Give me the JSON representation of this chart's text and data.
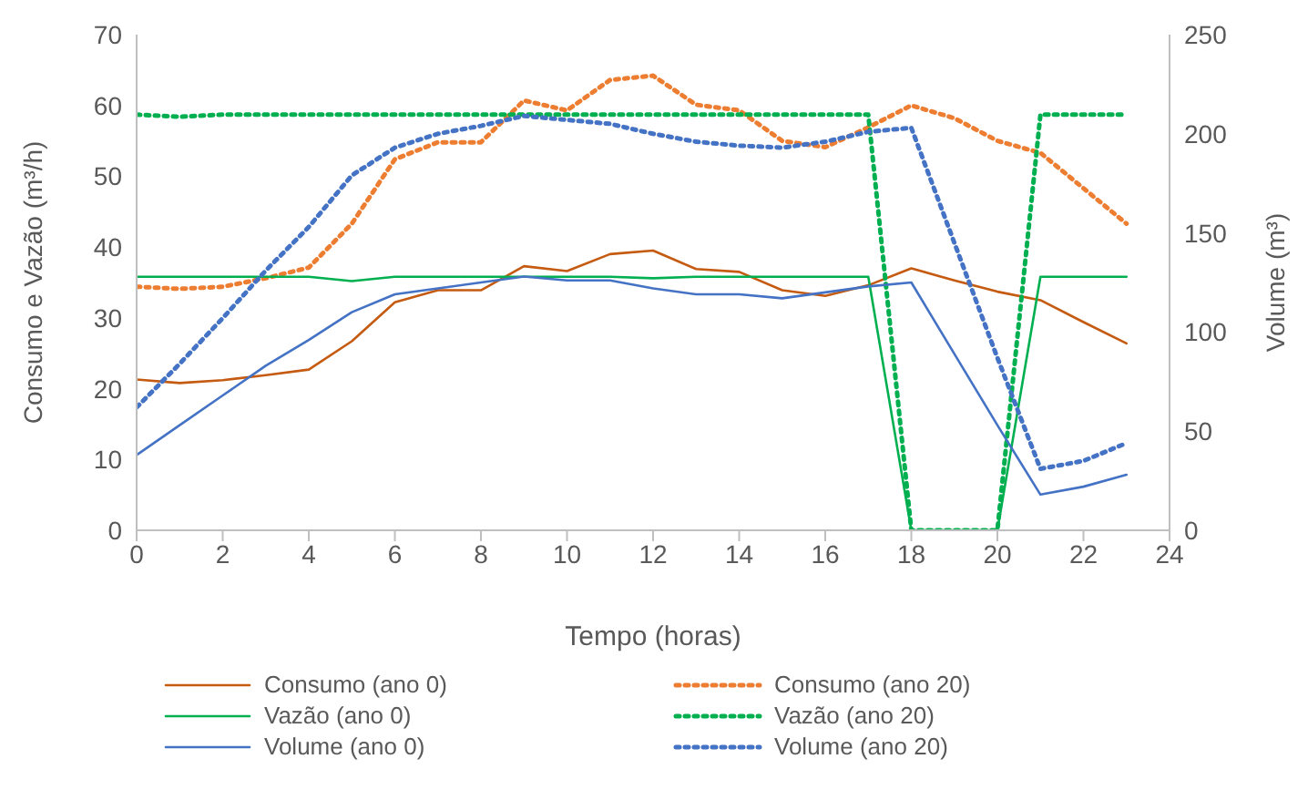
{
  "chart_data": {
    "type": "line",
    "xlabel": "Tempo (horas)",
    "ylabel": "Consumo e Vazão (m³/h)",
    "y2label": "Volume (m³)",
    "x": [
      0,
      1,
      2,
      3,
      4,
      5,
      6,
      7,
      8,
      9,
      10,
      11,
      12,
      13,
      14,
      15,
      16,
      17,
      18,
      19,
      20,
      21,
      22,
      23
    ],
    "xlim": [
      0,
      24
    ],
    "xticks": [
      0,
      2,
      4,
      6,
      8,
      10,
      12,
      14,
      16,
      18,
      20,
      22,
      24
    ],
    "ylim": [
      0,
      70
    ],
    "yticks": [
      0,
      10,
      20,
      30,
      40,
      50,
      60,
      70
    ],
    "y2lim": [
      0,
      250
    ],
    "y2ticks": [
      0,
      50,
      100,
      150,
      200,
      250
    ],
    "grid": false,
    "legend": "bottom",
    "marker": "none",
    "series": [
      {
        "name": "Consumo (ano 0)",
        "color": "#c55a11",
        "line_style": "solid",
        "values": [
          21.3,
          20.8,
          21.2,
          21.9,
          22.7,
          26.7,
          32.2,
          33.9,
          33.9,
          37.3,
          36.6,
          39.0,
          39.5,
          36.9,
          36.5,
          33.9,
          33.1,
          34.6,
          37.0,
          35.3,
          33.7,
          32.5,
          29.4,
          26.4
        ]
      },
      {
        "name": "Consumo (ano 20)",
        "color": "#ed7d31",
        "line_style": "dotted",
        "values": [
          34.4,
          34.1,
          34.4,
          35.6,
          37.1,
          43.3,
          52.4,
          54.8,
          54.8,
          60.7,
          59.3,
          63.6,
          64.2,
          60.1,
          59.3,
          55.0,
          54.1,
          56.9,
          60.0,
          58.2,
          55.0,
          53.3,
          48.3,
          43.3
        ]
      },
      {
        "name": "Vazão (ano 0)",
        "color": "#00b050",
        "line_style": "solid",
        "values": [
          35.8,
          35.8,
          35.8,
          35.8,
          35.8,
          35.2,
          35.8,
          35.8,
          35.8,
          35.8,
          35.8,
          35.8,
          35.6,
          35.8,
          35.8,
          35.8,
          35.8,
          35.8,
          0,
          0,
          0,
          35.8,
          35.8,
          35.8
        ]
      },
      {
        "name": "Vazão (ano 20)",
        "color": "#00b050",
        "line_style": "dotted",
        "values": [
          58.7,
          58.4,
          58.7,
          58.7,
          58.7,
          58.7,
          58.7,
          58.7,
          58.7,
          58.7,
          58.7,
          58.7,
          58.7,
          58.7,
          58.7,
          58.7,
          58.7,
          58.7,
          0,
          0,
          0,
          58.7,
          58.7,
          58.7
        ]
      },
      {
        "name": "Volume (ano 0)",
        "color": "#4472c4",
        "line_style": "solid",
        "axis": "y2",
        "values": [
          38,
          53,
          68,
          83,
          96,
          110,
          119,
          122,
          125,
          128,
          126,
          126,
          122,
          119,
          119,
          117,
          120,
          123,
          125,
          89,
          53,
          18,
          22,
          28
        ]
      },
      {
        "name": "Volume (ano 20)",
        "color": "#4472c4",
        "line_style": "dotted",
        "axis": "y2",
        "values": [
          62,
          84,
          107,
          131,
          153,
          179,
          193,
          200,
          204,
          209,
          207,
          205,
          200,
          196,
          194,
          193,
          196,
          201,
          203,
          145,
          87,
          31,
          35,
          44
        ]
      }
    ]
  }
}
